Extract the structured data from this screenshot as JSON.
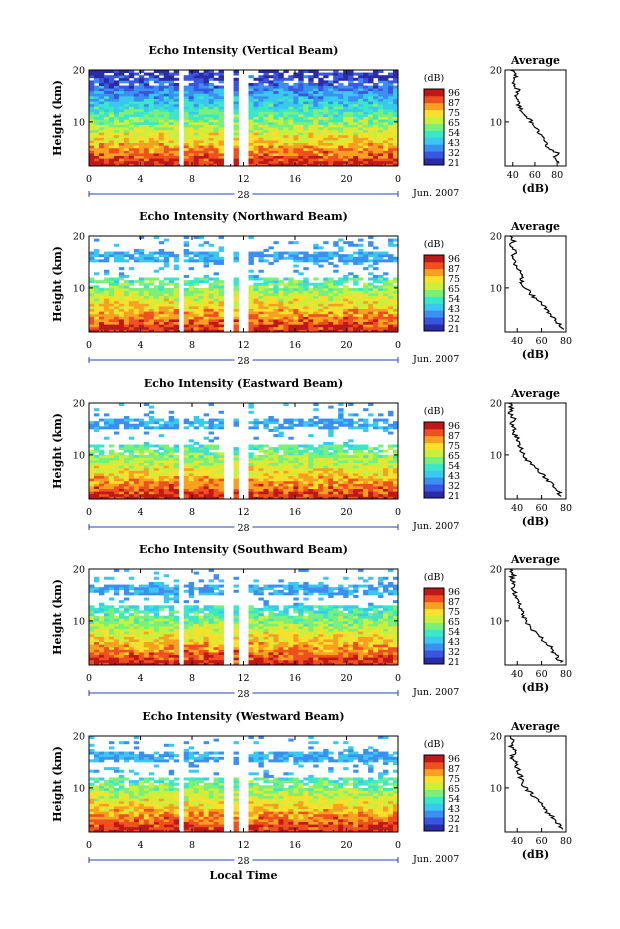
{
  "figure": {
    "xlabel": "Local Time",
    "date_label": "Jun. 2007",
    "day_label": "28"
  },
  "colorbar": {
    "unit": "(dB)",
    "tick_labels": [
      "96",
      "87",
      "75",
      "65",
      "54",
      "43",
      "32",
      "21"
    ],
    "range": [
      21,
      96
    ],
    "colormap": [
      "#2b2ba6",
      "#3a55e0",
      "#3a8ff0",
      "#38c8f0",
      "#3ae8c8",
      "#7af07a",
      "#c8f03c",
      "#f8e02c",
      "#f8a020",
      "#f05020",
      "#c01818"
    ]
  },
  "chart_data": [
    {
      "type": "heatmap",
      "title": "Echo Intensity (Vertical Beam)",
      "ylabel": "Height (km)",
      "x_ticks": [
        "0",
        "4",
        "8",
        "12",
        "16",
        "20",
        "0"
      ],
      "y_ticks": [
        "20",
        "10"
      ],
      "xlim": [
        0,
        24
      ],
      "ylim": [
        1.5,
        20
      ],
      "gaps_hours": [
        [
          7.0,
          7.4
        ],
        [
          10.6,
          11.4
        ],
        [
          11.8,
          12.3
        ]
      ],
      "threshold_km": 19,
      "profile": {
        "title": "Average",
        "xlabel": "(dB)",
        "x_ticks": [
          "40",
          "60",
          "80"
        ],
        "y_ticks": [
          "20",
          "10"
        ],
        "xlim": [
          33,
          88
        ],
        "height_km": [
          2,
          3,
          4,
          5,
          6,
          7,
          8,
          9,
          10,
          11,
          12,
          13,
          14,
          15,
          16,
          17,
          18,
          19,
          20
        ],
        "db": [
          83,
          77,
          80,
          72,
          70,
          68,
          63,
          60,
          57,
          52,
          48,
          46,
          44,
          42,
          46,
          41,
          40,
          43,
          38
        ]
      }
    },
    {
      "type": "heatmap",
      "title": "Echo Intensity (Northward Beam)",
      "ylabel": "Height (km)",
      "x_ticks": [
        "0",
        "4",
        "8",
        "12",
        "16",
        "20",
        "0"
      ],
      "y_ticks": [
        "20",
        "10"
      ],
      "xlim": [
        0,
        24
      ],
      "ylim": [
        1.5,
        20
      ],
      "gaps_hours": [
        [
          7.0,
          7.4
        ],
        [
          10.6,
          11.4
        ],
        [
          11.8,
          12.3
        ]
      ],
      "threshold_km": 12,
      "profile": {
        "title": "Average",
        "xlabel": "(dB)",
        "x_ticks": [
          "40",
          "60",
          "80"
        ],
        "y_ticks": [
          "20",
          "10"
        ],
        "xlim": [
          30,
          80
        ],
        "height_km": [
          2,
          3,
          4,
          5,
          6,
          7,
          8,
          9,
          10,
          11,
          12,
          13,
          14,
          15,
          16,
          17,
          18,
          19,
          20
        ],
        "db": [
          78,
          74,
          70,
          66,
          63,
          60,
          55,
          50,
          47,
          44,
          43,
          42,
          40,
          38,
          36,
          38,
          35,
          37,
          34
        ]
      }
    },
    {
      "type": "heatmap",
      "title": "Echo Intensity (Eastward Beam)",
      "ylabel": "Height (km)",
      "x_ticks": [
        "0",
        "4",
        "8",
        "12",
        "16",
        "20",
        "0"
      ],
      "y_ticks": [
        "20",
        "10"
      ],
      "xlim": [
        0,
        24
      ],
      "ylim": [
        1.5,
        20
      ],
      "gaps_hours": [
        [
          7.0,
          7.4
        ],
        [
          10.6,
          11.4
        ],
        [
          11.8,
          12.3
        ]
      ],
      "threshold_km": 12,
      "profile": {
        "title": "Average",
        "xlabel": "(dB)",
        "x_ticks": [
          "40",
          "60",
          "80"
        ],
        "y_ticks": [
          "20",
          "10"
        ],
        "xlim": [
          30,
          80
        ],
        "height_km": [
          2,
          3,
          4,
          5,
          6,
          7,
          8,
          9,
          10,
          11,
          12,
          13,
          14,
          15,
          16,
          17,
          18,
          19,
          20
        ],
        "db": [
          77,
          73,
          70,
          66,
          62,
          58,
          52,
          48,
          45,
          43,
          42,
          40,
          38,
          37,
          35,
          37,
          34,
          36,
          33
        ]
      }
    },
    {
      "type": "heatmap",
      "title": "Echo Intensity (Southward Beam)",
      "ylabel": "Height (km)",
      "x_ticks": [
        "0",
        "4",
        "8",
        "12",
        "16",
        "20",
        "0"
      ],
      "y_ticks": [
        "20",
        "10"
      ],
      "xlim": [
        0,
        24
      ],
      "ylim": [
        1.5,
        20
      ],
      "gaps_hours": [
        [
          7.0,
          7.4
        ],
        [
          10.6,
          11.4
        ],
        [
          11.8,
          12.3
        ]
      ],
      "threshold_km": 13,
      "profile": {
        "title": "Average",
        "xlabel": "(dB)",
        "x_ticks": [
          "40",
          "60",
          "80"
        ],
        "y_ticks": [
          "20",
          "10"
        ],
        "xlim": [
          30,
          80
        ],
        "height_km": [
          2,
          3,
          4,
          5,
          6,
          7,
          8,
          9,
          10,
          11,
          12,
          13,
          14,
          15,
          16,
          17,
          18,
          19,
          20
        ],
        "db": [
          76,
          73,
          70,
          67,
          63,
          58,
          54,
          50,
          47,
          45,
          44,
          42,
          40,
          39,
          37,
          38,
          35,
          37,
          34
        ]
      }
    },
    {
      "type": "heatmap",
      "title": "Echo Intensity (Westward Beam)",
      "ylabel": "Height (km)",
      "x_ticks": [
        "0",
        "4",
        "8",
        "12",
        "16",
        "20",
        "0"
      ],
      "y_ticks": [
        "20",
        "10"
      ],
      "xlim": [
        0,
        24
      ],
      "ylim": [
        1.5,
        20
      ],
      "gaps_hours": [
        [
          7.0,
          7.4
        ],
        [
          10.6,
          11.4
        ],
        [
          11.8,
          12.3
        ]
      ],
      "threshold_km": 12,
      "profile": {
        "title": "Average",
        "xlabel": "(dB)",
        "x_ticks": [
          "40",
          "60",
          "80"
        ],
        "y_ticks": [
          "20",
          "10"
        ],
        "xlim": [
          30,
          80
        ],
        "height_km": [
          2,
          3,
          4,
          5,
          6,
          7,
          8,
          9,
          10,
          11,
          12,
          13,
          14,
          15,
          16,
          17,
          18,
          19,
          20
        ],
        "db": [
          78,
          74,
          70,
          66,
          62,
          59,
          55,
          51,
          47,
          44,
          43,
          42,
          40,
          38,
          36,
          38,
          35,
          37,
          34
        ]
      }
    }
  ]
}
